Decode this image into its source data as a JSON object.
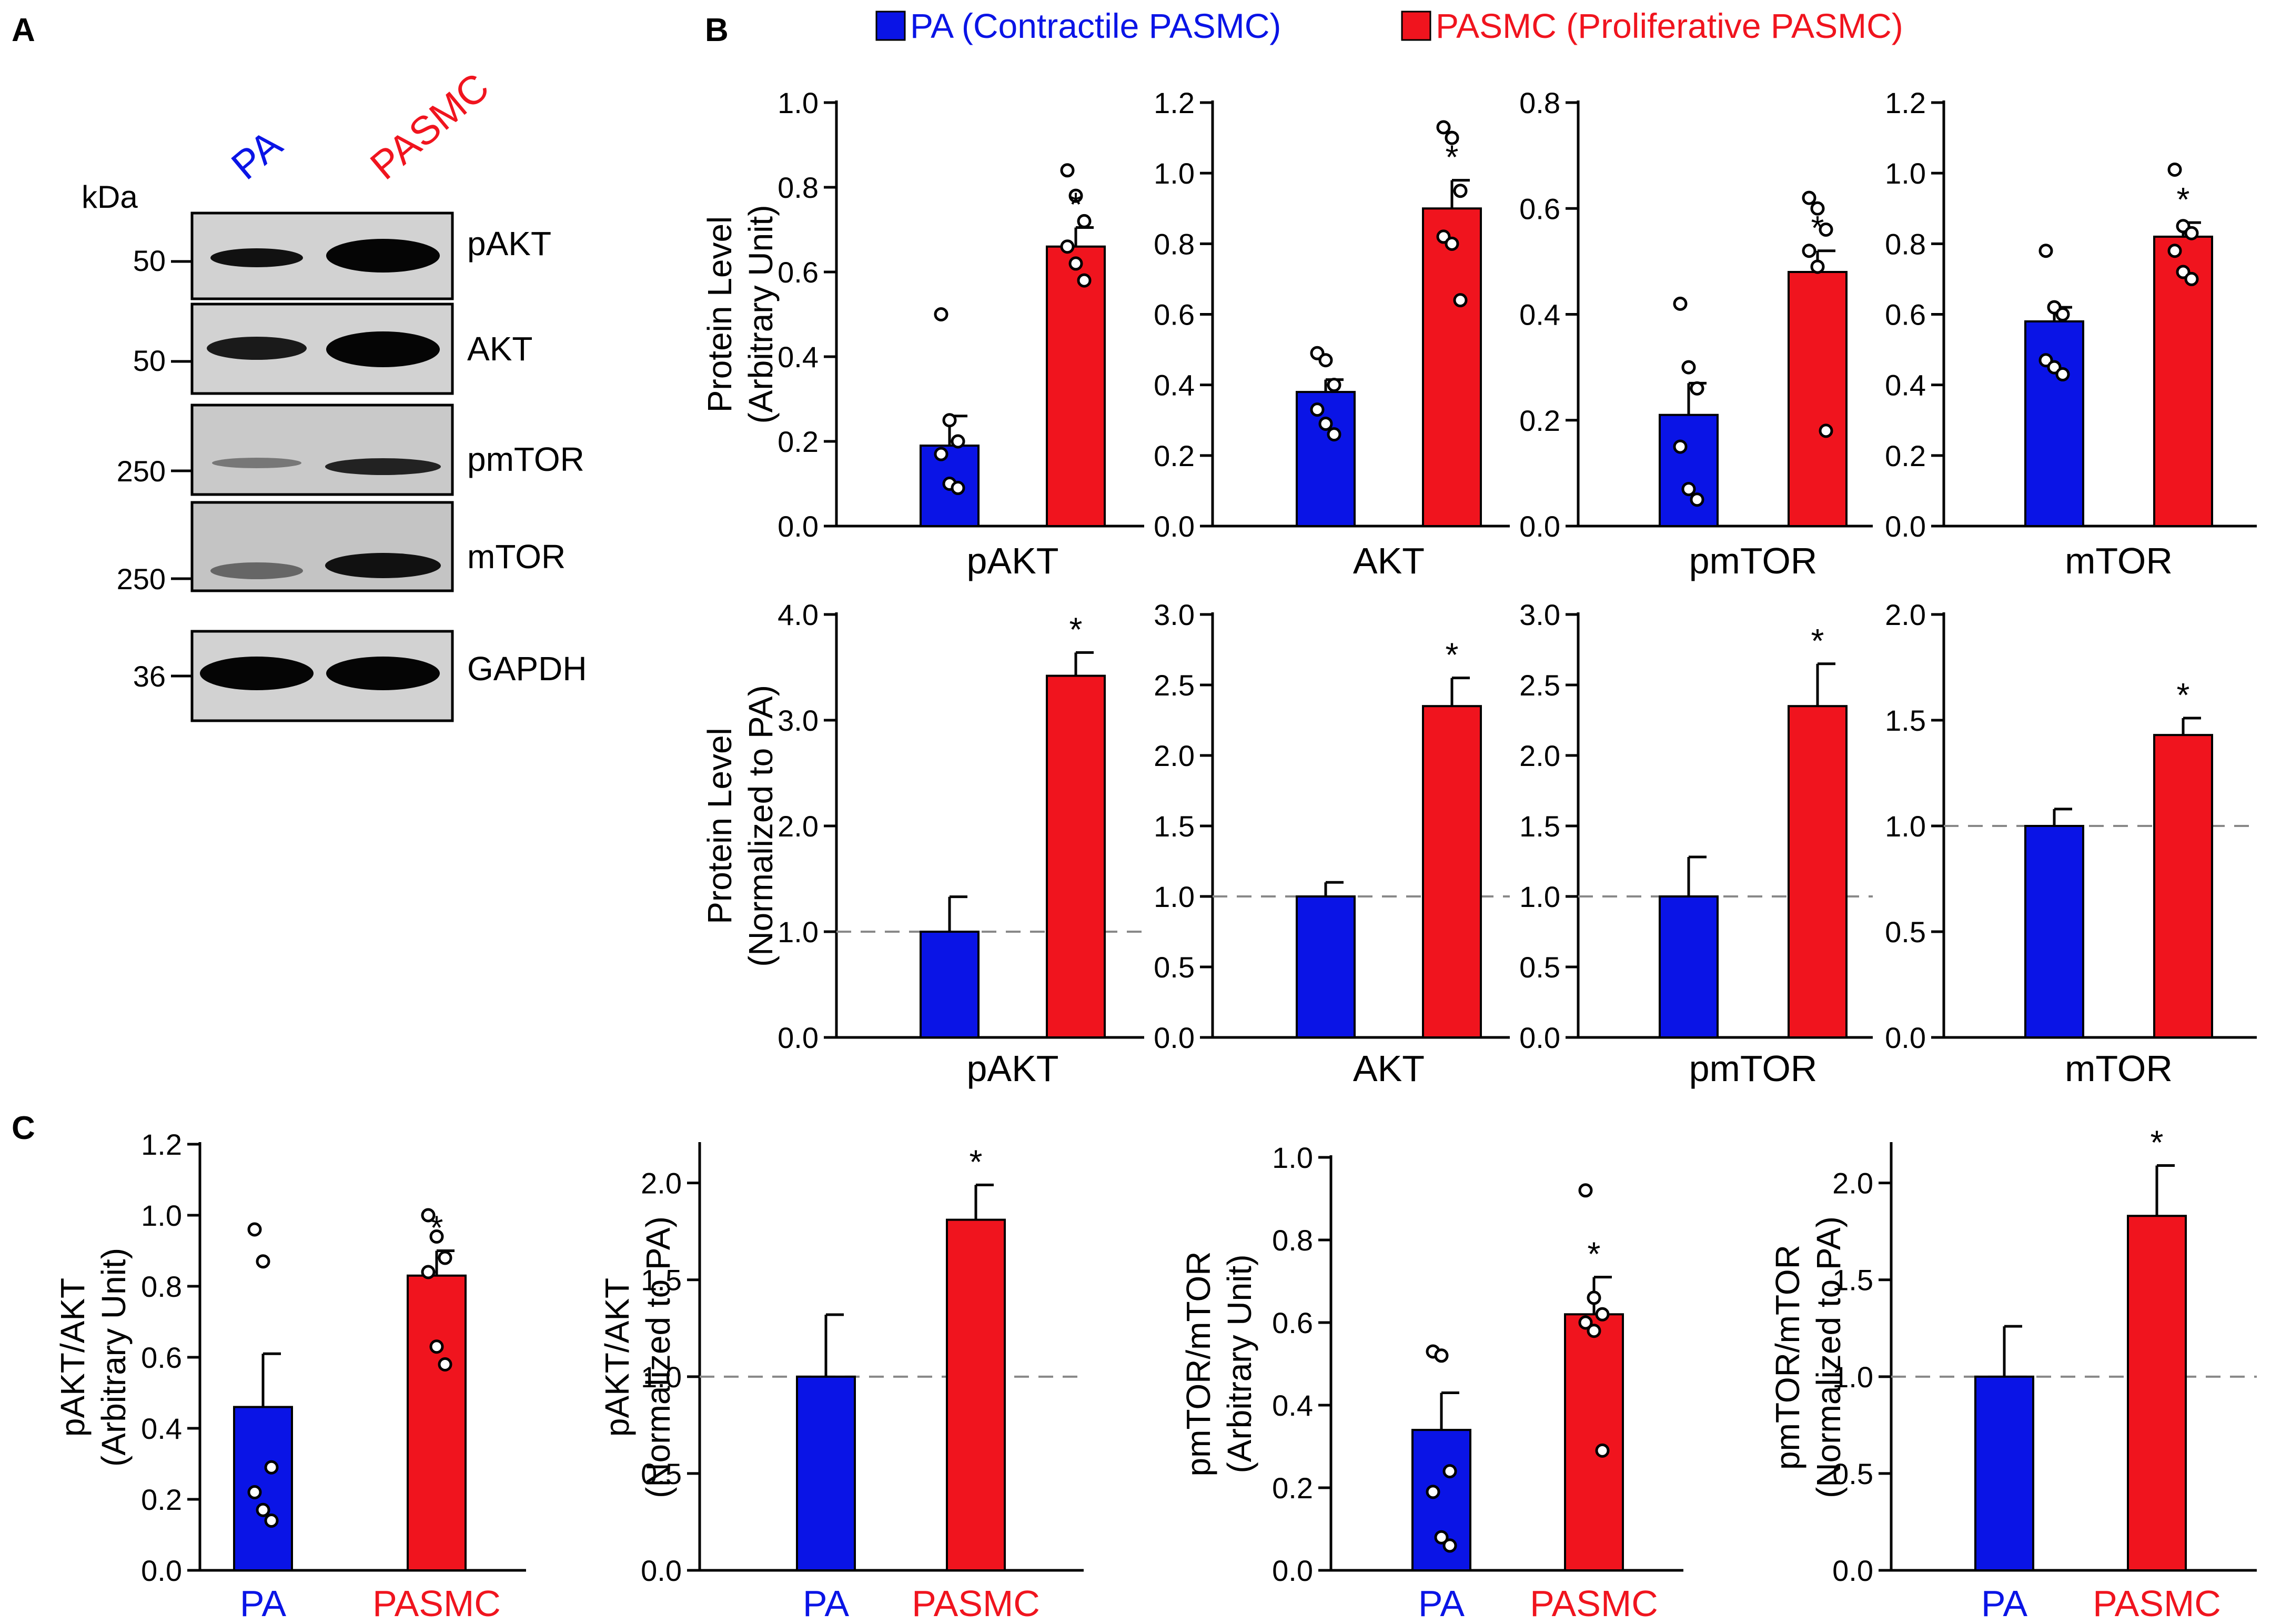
{
  "figure": {
    "panel_labels": [
      "A",
      "B",
      "C"
    ],
    "colors": {
      "pa": "#0a14e6",
      "pasmc": "#f0141e",
      "axis": "#000000",
      "dash": "#888888"
    }
  },
  "panel_a": {
    "kda_label": "kDa",
    "lane_labels": [
      "PA",
      "PASMC"
    ],
    "blots": [
      {
        "protein": "pAKT",
        "mw": "50"
      },
      {
        "protein": "AKT",
        "mw": "50"
      },
      {
        "protein": "pmTOR",
        "mw": "250"
      },
      {
        "protein": "mTOR",
        "mw": "250"
      },
      {
        "protein": "GAPDH",
        "mw": "36"
      }
    ]
  },
  "legend": {
    "pa": "PA (Contractile PASMC)",
    "pasmc": "PASMC (Proliferative PASMC)"
  },
  "chart_data": [
    {
      "id": "b1",
      "type": "bar",
      "ylabel": [
        "Protein Level",
        "(Arbitrary Unit)"
      ],
      "xlabel": "pAKT",
      "categories": [
        "PA",
        "PASMC"
      ],
      "values": [
        0.19,
        0.66
      ],
      "errors": [
        0.07,
        0.045
      ],
      "points": [
        [
          0.5,
          0.25,
          0.2,
          0.17,
          0.1,
          0.09
        ],
        [
          0.84,
          0.78,
          0.72,
          0.66,
          0.62,
          0.58
        ]
      ],
      "ylim": [
        0,
        1.0
      ],
      "yticks": [
        "0.0",
        "0.2",
        "0.4",
        "0.6",
        "0.8",
        "1.0"
      ],
      "significance": "*"
    },
    {
      "id": "b2",
      "type": "bar",
      "ylabel": [],
      "xlabel": "AKT",
      "categories": [
        "PA",
        "PASMC"
      ],
      "values": [
        0.38,
        0.9
      ],
      "errors": [
        0.035,
        0.08
      ],
      "points": [
        [
          0.49,
          0.47,
          0.4,
          0.33,
          0.29,
          0.26
        ],
        [
          1.13,
          1.1,
          0.95,
          0.82,
          0.8,
          0.64
        ]
      ],
      "ylim": [
        0,
        1.2
      ],
      "yticks": [
        "0.0",
        "0.2",
        "0.4",
        "0.6",
        "0.8",
        "1.0",
        "1.2"
      ],
      "significance": "*"
    },
    {
      "id": "b3",
      "type": "bar",
      "ylabel": [],
      "xlabel": "pmTOR",
      "categories": [
        "PA",
        "PASMC"
      ],
      "values": [
        0.21,
        0.48
      ],
      "errors": [
        0.06,
        0.04
      ],
      "points": [
        [
          0.42,
          0.3,
          0.26,
          0.15,
          0.07,
          0.05
        ],
        [
          0.62,
          0.6,
          0.56,
          0.52,
          0.49,
          0.18
        ]
      ],
      "ylim": [
        0,
        0.8
      ],
      "yticks": [
        "0.0",
        "0.2",
        "0.4",
        "0.6",
        "0.8"
      ],
      "significance": "*"
    },
    {
      "id": "b4",
      "type": "bar",
      "ylabel": [],
      "xlabel": "mTOR",
      "categories": [
        "PA",
        "PASMC"
      ],
      "values": [
        0.58,
        0.82
      ],
      "errors": [
        0.04,
        0.04
      ],
      "points": [
        [
          0.78,
          0.62,
          0.6,
          0.47,
          0.45,
          0.43
        ],
        [
          1.01,
          0.85,
          0.83,
          0.78,
          0.72,
          0.7
        ]
      ],
      "ylim": [
        0,
        1.2
      ],
      "yticks": [
        "0.0",
        "0.2",
        "0.4",
        "0.6",
        "0.8",
        "1.0",
        "1.2"
      ],
      "significance": "*"
    },
    {
      "id": "b5",
      "type": "bar",
      "ylabel": [
        "Protein Level",
        "(Normalized to PA)"
      ],
      "xlabel": "pAKT",
      "categories": [
        "PA",
        "PASMC"
      ],
      "values": [
        1.0,
        3.42
      ],
      "errors": [
        0.33,
        0.22
      ],
      "points": [
        [],
        []
      ],
      "ylim": [
        0,
        4.0
      ],
      "yticks": [
        "0.0",
        "1.0",
        "2.0",
        "3.0",
        "4.0"
      ],
      "refline": 1.0,
      "significance": "*"
    },
    {
      "id": "b6",
      "type": "bar",
      "ylabel": [],
      "xlabel": "AKT",
      "categories": [
        "PA",
        "PASMC"
      ],
      "values": [
        1.0,
        2.35
      ],
      "errors": [
        0.1,
        0.2
      ],
      "points": [
        [],
        []
      ],
      "ylim": [
        0,
        3.0
      ],
      "yticks": [
        "0.0",
        "0.5",
        "1.0",
        "1.5",
        "2.0",
        "2.5",
        "3.0"
      ],
      "refline": 1.0,
      "significance": "*"
    },
    {
      "id": "b7",
      "type": "bar",
      "ylabel": [],
      "xlabel": "pmTOR",
      "categories": [
        "PA",
        "PASMC"
      ],
      "values": [
        1.0,
        2.35
      ],
      "errors": [
        0.28,
        0.3
      ],
      "points": [
        [],
        []
      ],
      "ylim": [
        0,
        3.0
      ],
      "yticks": [
        "0.0",
        "0.5",
        "1.0",
        "1.5",
        "2.0",
        "2.5",
        "3.0"
      ],
      "refline": 1.0,
      "significance": "*"
    },
    {
      "id": "b8",
      "type": "bar",
      "ylabel": [],
      "xlabel": "mTOR",
      "categories": [
        "PA",
        "PASMC"
      ],
      "values": [
        1.0,
        1.43
      ],
      "errors": [
        0.08,
        0.08
      ],
      "points": [
        [],
        []
      ],
      "ylim": [
        0,
        2.0
      ],
      "yticks": [
        "0.0",
        "0.5",
        "1.0",
        "1.5",
        "2.0"
      ],
      "refline": 1.0,
      "significance": "*"
    },
    {
      "id": "c1",
      "type": "bar",
      "ylabel": [
        "pAKT/AKT",
        "(Arbitrary Unit)"
      ],
      "xlabel": "",
      "categories": [
        "PA",
        "PASMC"
      ],
      "values": [
        0.46,
        0.83
      ],
      "errors": [
        0.15,
        0.07
      ],
      "points": [
        [
          0.96,
          0.87,
          0.29,
          0.22,
          0.17,
          0.14
        ],
        [
          1.0,
          0.94,
          0.88,
          0.84,
          0.63,
          0.58
        ]
      ],
      "ylim": [
        0,
        1.2
      ],
      "yticks": [
        "0.0",
        "0.2",
        "0.4",
        "0.6",
        "0.8",
        "1.0",
        "1.2"
      ],
      "significance": "*"
    },
    {
      "id": "c2",
      "type": "bar",
      "ylabel": [
        "pAKT/AKT",
        "(Normalized to PA)"
      ],
      "xlabel": "",
      "categories": [
        "PA",
        "PASMC"
      ],
      "values": [
        1.0,
        1.81
      ],
      "errors": [
        0.32,
        0.18
      ],
      "points": [
        [],
        []
      ],
      "ylim": [
        0,
        2.2
      ],
      "yticks": [
        "0.0",
        "0.5",
        "1.0",
        "1.5",
        "2.0"
      ],
      "refline": 1.0,
      "significance": "*"
    },
    {
      "id": "c3",
      "type": "bar",
      "ylabel": [
        "pmTOR/mTOR",
        "(Arbitrary Unit)"
      ],
      "xlabel": "",
      "categories": [
        "PA",
        "PASMC"
      ],
      "values": [
        0.34,
        0.62
      ],
      "errors": [
        0.09,
        0.09
      ],
      "points": [
        [
          0.53,
          0.52,
          0.24,
          0.19,
          0.08,
          0.06
        ],
        [
          0.92,
          0.66,
          0.62,
          0.6,
          0.58,
          0.29
        ]
      ],
      "ylim": [
        0,
        1.0
      ],
      "yticks": [
        "0.0",
        "0.2",
        "0.4",
        "0.6",
        "0.8",
        "1.0"
      ],
      "significance": "*"
    },
    {
      "id": "c4",
      "type": "bar",
      "ylabel": [
        "pmTOR/mTOR",
        "(Normalized to PA)"
      ],
      "xlabel": "",
      "categories": [
        "PA",
        "PASMC"
      ],
      "values": [
        1.0,
        1.83
      ],
      "errors": [
        0.26,
        0.26
      ],
      "points": [
        [],
        []
      ],
      "ylim": [
        0,
        2.2
      ],
      "yticks": [
        "0.0",
        "0.5",
        "1.0",
        "1.5",
        "2.0"
      ],
      "refline": 1.0,
      "significance": "*"
    }
  ]
}
